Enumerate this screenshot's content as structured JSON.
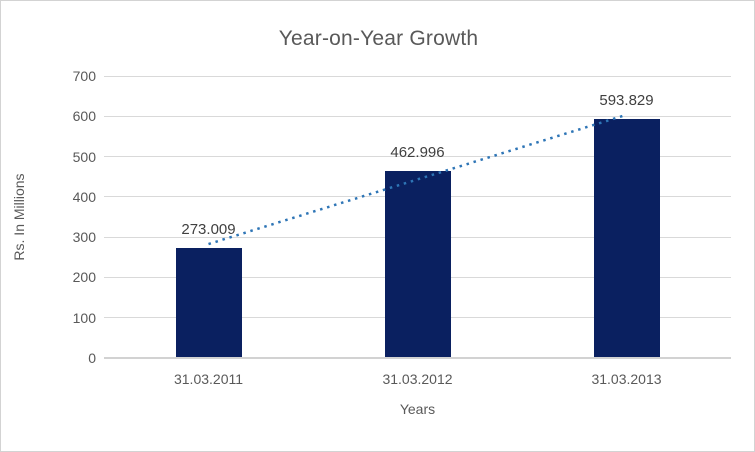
{
  "window": {
    "background": "#ffffff",
    "border_color": "#d3d3d3"
  },
  "chart_data": {
    "type": "bar",
    "title": "Year-on-Year Growth",
    "xlabel": "Years",
    "ylabel": "Rs. In Millions",
    "categories": [
      "31.03.2011",
      "31.03.2012",
      "31.03.2013"
    ],
    "values": [
      273.009,
      462.996,
      593.829
    ],
    "data_labels": [
      "273.009",
      "462.996",
      "593.829"
    ],
    "ylim": [
      0,
      700
    ],
    "yticks": [
      0,
      100,
      200,
      300,
      400,
      500,
      600,
      700
    ],
    "grid": true,
    "legend": "none",
    "bar_color": "#0a2060",
    "label_color": "#404040",
    "axis_text_color": "#595959",
    "gridline_color": "#d9d9d9",
    "trendline": {
      "type": "linear",
      "style": "dotted",
      "color": "#2e75b6",
      "endpoint_values": [
        282.868,
        603.688
      ]
    }
  }
}
